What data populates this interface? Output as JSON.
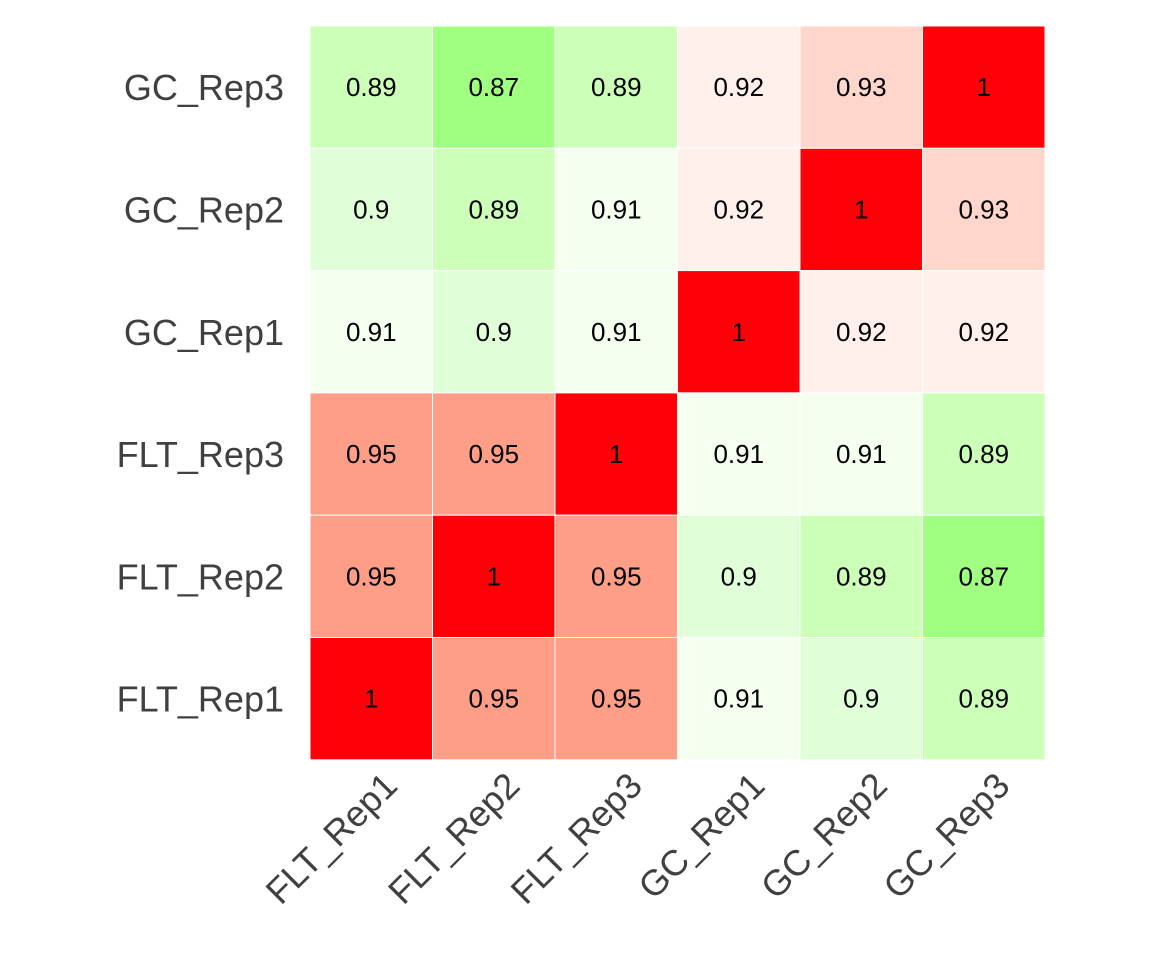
{
  "chart_data": {
    "type": "heatmap",
    "title": "",
    "xlabel": "",
    "ylabel": "",
    "x_categories": [
      "FLT_Rep1",
      "FLT_Rep2",
      "FLT_Rep3",
      "GC_Rep1",
      "GC_Rep2",
      "GC_Rep3"
    ],
    "y_categories_top_to_bottom": [
      "GC_Rep3",
      "GC_Rep2",
      "GC_Rep1",
      "FLT_Rep3",
      "FLT_Rep2",
      "FLT_Rep1"
    ],
    "values": [
      [
        0.89,
        0.87,
        0.89,
        0.92,
        0.93,
        1
      ],
      [
        0.9,
        0.89,
        0.91,
        0.92,
        1,
        0.93
      ],
      [
        0.91,
        0.9,
        0.91,
        1,
        0.92,
        0.92
      ],
      [
        0.95,
        0.95,
        1,
        0.91,
        0.91,
        0.89
      ],
      [
        0.95,
        1,
        0.95,
        0.9,
        0.89,
        0.87
      ],
      [
        1,
        0.95,
        0.95,
        0.91,
        0.9,
        0.89
      ]
    ],
    "colors": {
      "0.87": "#a0ff80",
      "0.89": "#ccffb8",
      "0.9": "#e0ffd8",
      "0.91": "#f4fff0",
      "0.92": "#fff0eb",
      "0.93": "#ffd6cb",
      "0.95": "#ff9e86",
      "1": "#ff0008"
    },
    "legend": "none",
    "grid": false
  }
}
